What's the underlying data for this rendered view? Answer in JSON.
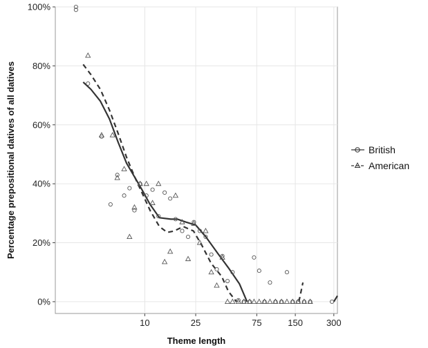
{
  "chart_data": {
    "type": "scatter",
    "title": "",
    "xlabel": "Theme length",
    "ylabel": "Percentage prepositional datives of all datives",
    "x_scale": "log",
    "xlim": [
      2,
      320
    ],
    "ylim": [
      -0.04,
      1.0
    ],
    "x_ticks": [
      {
        "value": 10,
        "label": "10"
      },
      {
        "value": 25,
        "label": "25"
      },
      {
        "value": 75,
        "label": "75"
      },
      {
        "value": 150,
        "label": "150"
      },
      {
        "value": 300,
        "label": "300"
      }
    ],
    "y_ticks": [
      {
        "value": 0.0,
        "label": "0%"
      },
      {
        "value": 0.2,
        "label": "20%"
      },
      {
        "value": 0.4,
        "label": "40%"
      },
      {
        "value": 0.6,
        "label": "60%"
      },
      {
        "value": 0.8,
        "label": "80%"
      },
      {
        "value": 1.0,
        "label": "100%"
      }
    ],
    "grid": true,
    "legend_position": "right",
    "series": [
      {
        "name": "British",
        "marker": "circle",
        "line_style": "solid",
        "points": [
          [
            2.9,
            1.0
          ],
          [
            2.9,
            0.99
          ],
          [
            3.6,
            0.74
          ],
          [
            4.6,
            0.56
          ],
          [
            5.4,
            0.33
          ],
          [
            6.1,
            0.43
          ],
          [
            6.9,
            0.36
          ],
          [
            7.6,
            0.385
          ],
          [
            8.3,
            0.31
          ],
          [
            9.2,
            0.4
          ],
          [
            10.3,
            0.36
          ],
          [
            11.5,
            0.38
          ],
          [
            12.8,
            0.29
          ],
          [
            14.3,
            0.37
          ],
          [
            15.8,
            0.35
          ],
          [
            17.4,
            0.28
          ],
          [
            19.6,
            0.24
          ],
          [
            21.8,
            0.22
          ],
          [
            24.2,
            0.27
          ],
          [
            26.9,
            0.24
          ],
          [
            29.9,
            0.22
          ],
          [
            33.1,
            0.16
          ],
          [
            36.5,
            0.11
          ],
          [
            40.4,
            0.155
          ],
          [
            44.3,
            0.07
          ],
          [
            48.5,
            0.1
          ],
          [
            53.9,
            0.005
          ],
          [
            59.5,
            0.0
          ],
          [
            66.0,
            0.0
          ],
          [
            71.4,
            0.15
          ],
          [
            78.3,
            0.105
          ],
          [
            86.2,
            0.0
          ],
          [
            95.1,
            0.065
          ],
          [
            105,
            0.0
          ],
          [
            117,
            0.0
          ],
          [
            129,
            0.1
          ],
          [
            143,
            0.0
          ],
          [
            158,
            0.0
          ],
          [
            176,
            0.0
          ],
          [
            196,
            0.0
          ],
          [
            290,
            0.0
          ]
        ],
        "smooth_fit": [
          [
            3.3,
            0.745
          ],
          [
            3.8,
            0.72
          ],
          [
            4.5,
            0.68
          ],
          [
            5.3,
            0.62
          ],
          [
            6.2,
            0.54
          ],
          [
            7.2,
            0.47
          ],
          [
            8.4,
            0.42
          ],
          [
            9.5,
            0.38
          ],
          [
            11,
            0.33
          ],
          [
            13,
            0.285
          ],
          [
            16,
            0.28
          ],
          [
            18,
            0.28
          ],
          [
            21,
            0.27
          ],
          [
            25,
            0.26
          ],
          [
            30,
            0.22
          ],
          [
            37,
            0.165
          ],
          [
            45,
            0.115
          ],
          [
            55,
            0.06
          ],
          [
            63,
            0.0
          ]
        ]
      },
      {
        "name": "American",
        "marker": "triangle",
        "line_style": "dashed",
        "points": [
          [
            3.6,
            0.835
          ],
          [
            4.6,
            0.565
          ],
          [
            5.6,
            0.565
          ],
          [
            6.1,
            0.42
          ],
          [
            6.9,
            0.45
          ],
          [
            7.6,
            0.22
          ],
          [
            8.3,
            0.32
          ],
          [
            9.2,
            0.4
          ],
          [
            10.3,
            0.4
          ],
          [
            11.5,
            0.335
          ],
          [
            12.8,
            0.4
          ],
          [
            14.3,
            0.135
          ],
          [
            15.8,
            0.17
          ],
          [
            17.4,
            0.36
          ],
          [
            19.6,
            0.27
          ],
          [
            21.8,
            0.145
          ],
          [
            24.2,
            0.265
          ],
          [
            26.9,
            0.2
          ],
          [
            29.9,
            0.24
          ],
          [
            33.1,
            0.1
          ],
          [
            36.5,
            0.055
          ],
          [
            40.4,
            0.15
          ],
          [
            44.3,
            0.0
          ],
          [
            48.5,
            0.0
          ],
          [
            53.9,
            0.0
          ],
          [
            59.5,
            0.0
          ],
          [
            66.0,
            0.0
          ],
          [
            71.4,
            0.0
          ],
          [
            78.3,
            0.0
          ],
          [
            86.2,
            0.0
          ],
          [
            95.1,
            0.0
          ],
          [
            105,
            0.0
          ],
          [
            117,
            0.0
          ],
          [
            129,
            0.0
          ],
          [
            143,
            0.0
          ],
          [
            158,
            0.0
          ],
          [
            176,
            0.0
          ],
          [
            196,
            0.0
          ]
        ],
        "smooth_fit": [
          [
            3.3,
            0.805
          ],
          [
            3.8,
            0.77
          ],
          [
            4.5,
            0.72
          ],
          [
            5.3,
            0.65
          ],
          [
            6.2,
            0.57
          ],
          [
            7.2,
            0.49
          ],
          [
            8.4,
            0.42
          ],
          [
            9.5,
            0.37
          ],
          [
            11,
            0.31
          ],
          [
            13,
            0.255
          ],
          [
            15,
            0.235
          ],
          [
            17,
            0.24
          ],
          [
            20,
            0.255
          ],
          [
            24,
            0.24
          ],
          [
            28,
            0.19
          ],
          [
            33,
            0.13
          ],
          [
            40,
            0.085
          ],
          [
            45,
            0.035
          ],
          [
            52,
            0.0
          ]
        ]
      }
    ],
    "extra_fit_segments": [
      {
        "series": "American",
        "points": [
          [
            160,
            0.0
          ],
          [
            172,
            0.065
          ]
        ]
      },
      {
        "series": "British",
        "points": [
          [
            300,
            0.0
          ],
          [
            320,
            0.02
          ]
        ]
      }
    ]
  }
}
